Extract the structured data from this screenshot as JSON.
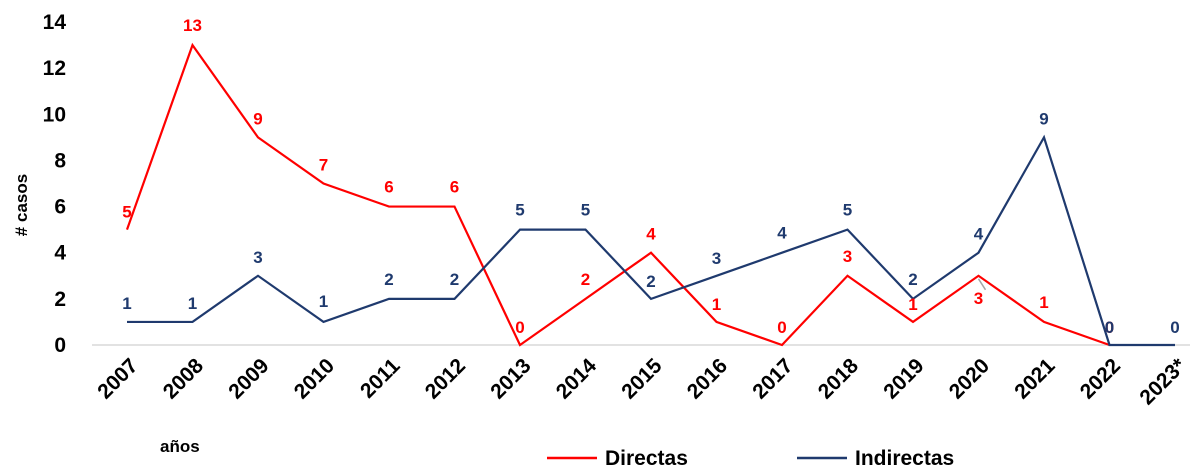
{
  "chart_data": {
    "type": "line",
    "categories": [
      "2007",
      "2008",
      "2009",
      "2010",
      "2011",
      "2012",
      "2013",
      "2014",
      "2015",
      "2016",
      "2017",
      "2018",
      "2019",
      "2020",
      "2021",
      "2022",
      "2023*"
    ],
    "series": [
      {
        "name": "Directas",
        "color": "#ff0000",
        "values": [
          5,
          13,
          9,
          7,
          6,
          6,
          0,
          2,
          4,
          1,
          0,
          3,
          1,
          3,
          1,
          0,
          null
        ]
      },
      {
        "name": "Indirectas",
        "color": "#1f3a6e",
        "values": [
          1,
          1,
          3,
          1,
          2,
          2,
          5,
          5,
          2,
          3,
          4,
          5,
          2,
          4,
          9,
          0,
          0
        ]
      }
    ],
    "ylabel": "# casos",
    "xlabel": "años",
    "ylim": [
      0,
      14
    ],
    "yticks": [
      0,
      2,
      4,
      6,
      8,
      10,
      12,
      14
    ],
    "legend_position": "bottom-right",
    "grid": false
  }
}
